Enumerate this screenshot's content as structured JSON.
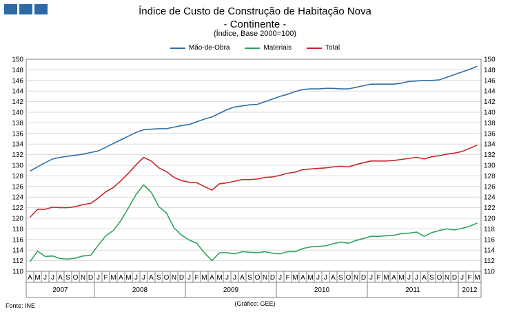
{
  "chart_data": {
    "type": "line",
    "title": "Índice de Custo de Construção de Habitação Nova",
    "subtitle": "- Continente -",
    "note": "(Índice, Base 2000=100)",
    "source": "Fonte: INE",
    "credit": "(Gráfico: GEE)",
    "legend_position": "top-center",
    "grid": true,
    "ylim": [
      110,
      150
    ],
    "ytick_step": 2,
    "x": [
      "A",
      "M",
      "J",
      "J",
      "A",
      "S",
      "O",
      "N",
      "D",
      "J",
      "F",
      "M",
      "A",
      "M",
      "J",
      "J",
      "A",
      "S",
      "O",
      "N",
      "D",
      "J",
      "F",
      "M",
      "A",
      "M",
      "J",
      "J",
      "A",
      "S",
      "O",
      "N",
      "D",
      "J",
      "F",
      "M",
      "A",
      "M",
      "J",
      "J",
      "A",
      "S",
      "O",
      "N",
      "D",
      "J",
      "F",
      "M",
      "A",
      "M",
      "J",
      "J",
      "A",
      "S",
      "O",
      "N",
      "D",
      "J",
      "F",
      "M"
    ],
    "years": [
      {
        "label": "2007",
        "start": 0,
        "count": 9
      },
      {
        "label": "2008",
        "start": 9,
        "count": 12
      },
      {
        "label": "2009",
        "start": 21,
        "count": 12
      },
      {
        "label": "2010",
        "start": 33,
        "count": 12
      },
      {
        "label": "2011",
        "start": 45,
        "count": 12
      },
      {
        "label": "2012",
        "start": 57,
        "count": 3
      }
    ],
    "series": [
      {
        "name": "Mão-de-Obra",
        "color": "#2f6ea6",
        "values": [
          128.9,
          129.7,
          130.5,
          131.2,
          131.5,
          131.7,
          131.9,
          132.1,
          132.4,
          132.7,
          133.4,
          134.1,
          134.8,
          135.5,
          136.2,
          136.7,
          136.8,
          136.9,
          136.9,
          137.2,
          137.5,
          137.7,
          138.2,
          138.7,
          139.1,
          139.8,
          140.5,
          141.0,
          141.2,
          141.4,
          141.5,
          142.0,
          142.5,
          143.0,
          143.4,
          143.9,
          144.3,
          144.4,
          144.4,
          144.5,
          144.5,
          144.4,
          144.4,
          144.7,
          145.0,
          145.3,
          145.3,
          145.3,
          145.3,
          145.5,
          145.8,
          145.9,
          146.0,
          146.0,
          146.1,
          146.6,
          147.1,
          147.6,
          148.1,
          148.7
        ]
      },
      {
        "name": "Materiais",
        "color": "#2ea35f",
        "values": [
          111.8,
          113.8,
          112.8,
          112.9,
          112.4,
          112.3,
          112.5,
          112.9,
          113.0,
          114.9,
          116.7,
          117.7,
          119.6,
          122.0,
          124.5,
          126.3,
          124.9,
          122.2,
          121.0,
          118.2,
          116.8,
          115.9,
          115.3,
          113.5,
          112.0,
          113.5,
          113.5,
          113.3,
          113.7,
          113.6,
          113.5,
          113.7,
          113.4,
          113.3,
          113.7,
          113.7,
          114.3,
          114.6,
          114.7,
          114.8,
          115.2,
          115.5,
          115.3,
          115.8,
          116.2,
          116.6,
          116.6,
          116.7,
          116.8,
          117.1,
          117.2,
          117.4,
          116.6,
          117.3,
          117.7,
          118.0,
          117.8,
          118.1,
          118.5,
          119.1
        ]
      },
      {
        "name": "Total",
        "color": "#c7262a",
        "values": [
          120.2,
          121.7,
          121.7,
          122.1,
          122.0,
          122.0,
          122.2,
          122.6,
          122.8,
          123.8,
          125.0,
          125.8,
          127.1,
          128.5,
          130.1,
          131.5,
          130.8,
          129.5,
          128.8,
          127.7,
          127.1,
          126.8,
          126.7,
          126.0,
          125.3,
          126.5,
          126.7,
          127.0,
          127.3,
          127.3,
          127.4,
          127.7,
          127.8,
          128.1,
          128.5,
          128.7,
          129.2,
          129.3,
          129.4,
          129.5,
          129.7,
          129.8,
          129.7,
          130.1,
          130.5,
          130.8,
          130.8,
          130.8,
          130.9,
          131.1,
          131.3,
          131.5,
          131.2,
          131.6,
          131.8,
          132.1,
          132.3,
          132.6,
          133.2,
          133.8
        ]
      }
    ]
  }
}
